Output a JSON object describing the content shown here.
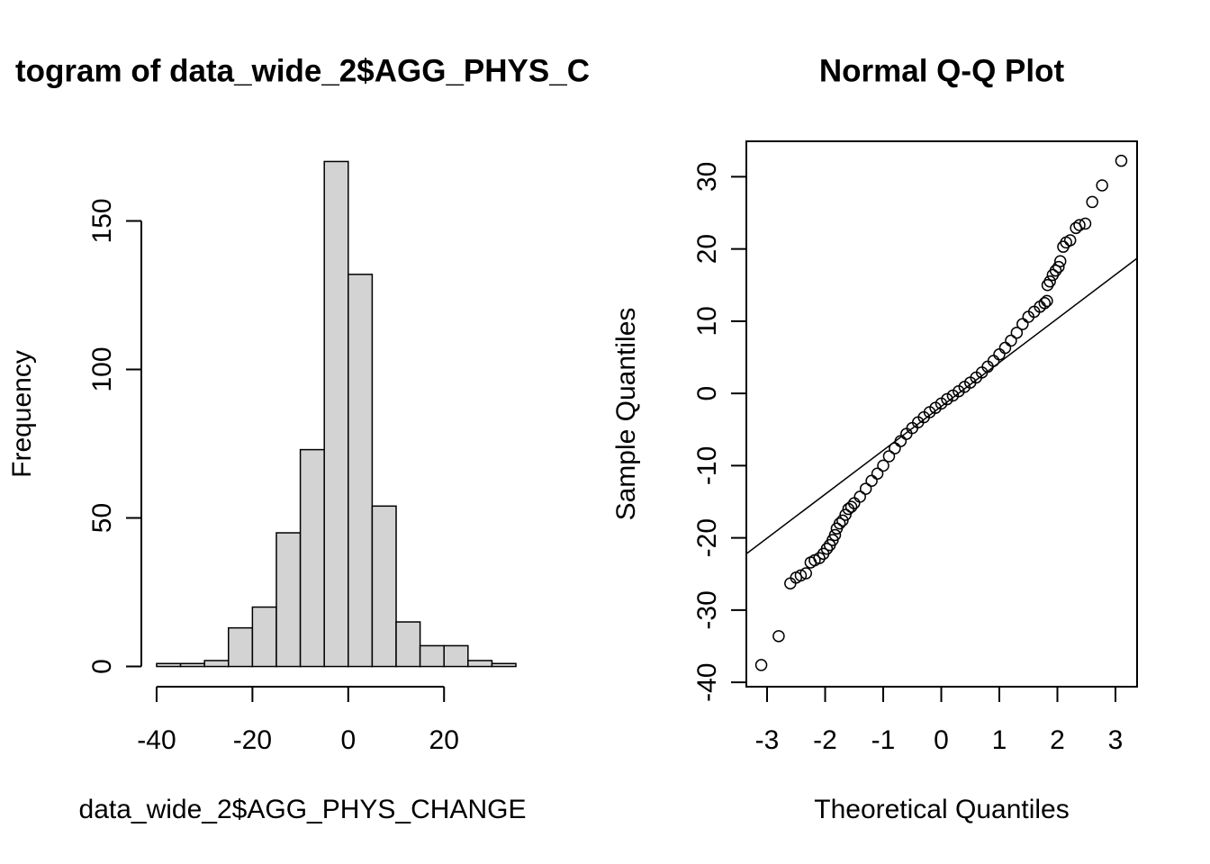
{
  "chart_data": [
    {
      "type": "histogram",
      "title": "togram of data_wide_2$AGG_PHYS_C",
      "x_label": "data_wide_2$AGG_PHYS_CHANGE",
      "y_label": "Frequency",
      "bins": [
        -40,
        -35,
        -30,
        -25,
        -20,
        -15,
        -10,
        -5,
        0,
        5,
        10,
        15,
        20,
        25,
        30,
        35
      ],
      "values": [
        1,
        1,
        2,
        13,
        20,
        45,
        73,
        170,
        132,
        54,
        15,
        7,
        7,
        2,
        1
      ],
      "color": "#d3d3d3",
      "xlim": [
        -43,
        38
      ],
      "ylim": [
        -6.8,
        176.8
      ],
      "xticks": [
        -40,
        -20,
        0,
        20
      ],
      "yticks": [
        0,
        50,
        100,
        150
      ]
    },
    {
      "type": "qq",
      "title": "Normal Q-Q Plot",
      "x_label": "Theoretical Quantiles",
      "y_label": "Sample Quantiles",
      "x": [
        -3.1,
        -2.8,
        -2.6,
        -2.5,
        -2.42,
        -2.33,
        -2.25,
        -2.18,
        -2.1,
        -2.03,
        -1.97,
        -1.92,
        -1.87,
        -1.83,
        -1.8,
        -1.75,
        -1.7,
        -1.65,
        -1.6,
        -1.55,
        -1.5,
        -1.4,
        -1.3,
        -1.2,
        -1.1,
        -1.0,
        -0.9,
        -0.8,
        -0.7,
        -0.6,
        -0.5,
        -0.4,
        -0.3,
        -0.2,
        -0.1,
        0,
        0.1,
        0.2,
        0.3,
        0.4,
        0.5,
        0.6,
        0.7,
        0.8,
        0.9,
        1.0,
        1.1,
        1.2,
        1.3,
        1.4,
        1.5,
        1.6,
        1.7,
        1.78,
        1.82,
        1.83,
        1.87,
        1.92,
        1.97,
        2.02,
        2.05,
        2.1,
        2.15,
        2.22,
        2.32,
        2.38,
        2.48,
        2.6,
        2.77,
        3.1
      ],
      "y": [
        -37.6,
        -33.6,
        -26.3,
        -25.5,
        -25.2,
        -24.9,
        -23.4,
        -23.1,
        -22.8,
        -22.2,
        -21.5,
        -21.0,
        -20.3,
        -19.6,
        -18.7,
        -18.0,
        -17.6,
        -16.8,
        -16.0,
        -15.7,
        -15.2,
        -14.3,
        -13.2,
        -12.1,
        -11.1,
        -10.0,
        -8.7,
        -7.6,
        -6.6,
        -5.6,
        -4.8,
        -4.0,
        -3.3,
        -2.6,
        -2.0,
        -1.4,
        -0.8,
        -0.3,
        0.3,
        0.9,
        1.5,
        2.2,
        2.9,
        3.7,
        4.5,
        5.4,
        6.3,
        7.3,
        8.4,
        9.6,
        10.6,
        11.3,
        12.0,
        12.5,
        12.8,
        15.0,
        15.5,
        16.4,
        17.0,
        17.5,
        18.3,
        20.3,
        20.9,
        21.2,
        22.9,
        23.3,
        23.5,
        26.5,
        28.8,
        32.2
      ],
      "qqline": {
        "intercept": -1.8,
        "slope": 6.08
      },
      "xlim": [
        -3.357,
        3.372
      ],
      "ylim": [
        -40.6,
        34.9
      ],
      "xticks": [
        -3,
        -2,
        -1,
        0,
        1,
        2,
        3
      ],
      "yticks": [
        -40,
        -30,
        -20,
        -10,
        0,
        10,
        20,
        30
      ]
    }
  ]
}
